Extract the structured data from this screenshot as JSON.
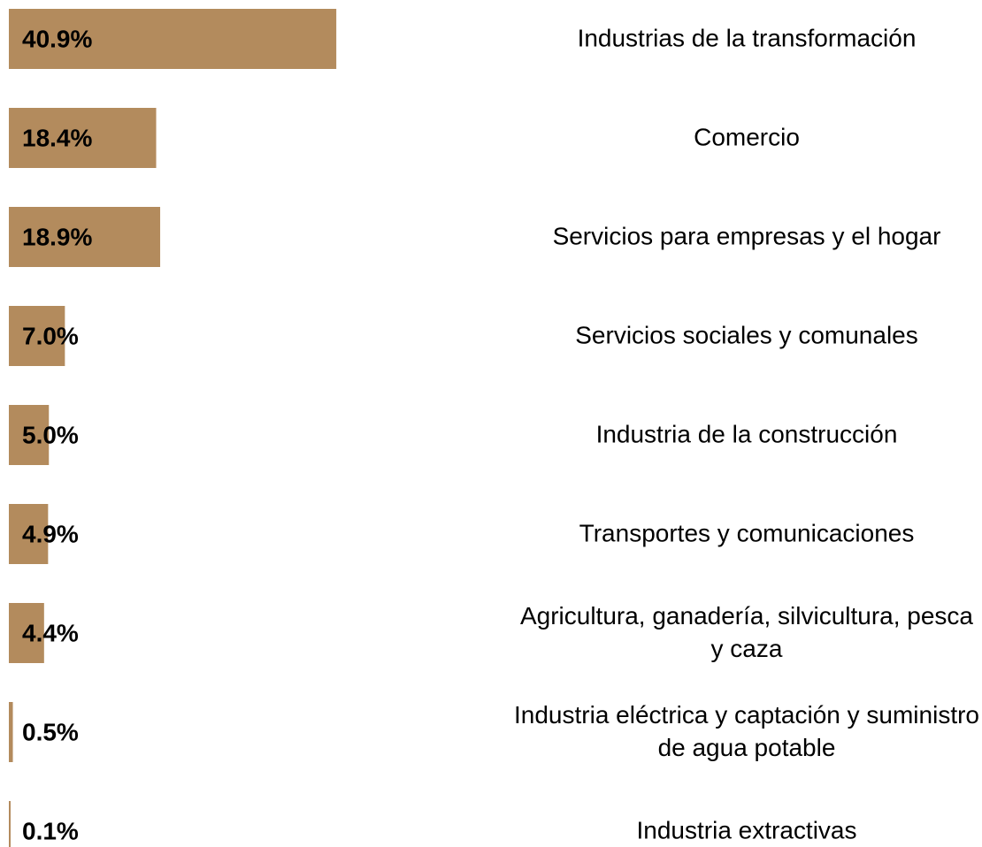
{
  "chart_data": {
    "type": "bar",
    "orientation": "horizontal",
    "color": "#b38b5d",
    "categories": [
      "Industrias de la transformación",
      "Comercio",
      "Servicios para empresas y el hogar",
      "Servicios sociales y comunales",
      "Industria de la construcción",
      "Transportes y comunicaciones",
      "Agricultura, ganadería, silvicultura, pesca y caza",
      "Industria eléctrica y captación y suministro de agua potable",
      "Industria extractivas"
    ],
    "values": [
      40.9,
      18.4,
      18.9,
      7.0,
      5.0,
      4.9,
      4.4,
      0.5,
      0.1
    ],
    "value_labels": [
      "40.9%",
      "18.4%",
      "18.9%",
      "7.0%",
      "5.0%",
      "4.9%",
      "4.4%",
      "0.5%",
      "0.1%"
    ]
  }
}
